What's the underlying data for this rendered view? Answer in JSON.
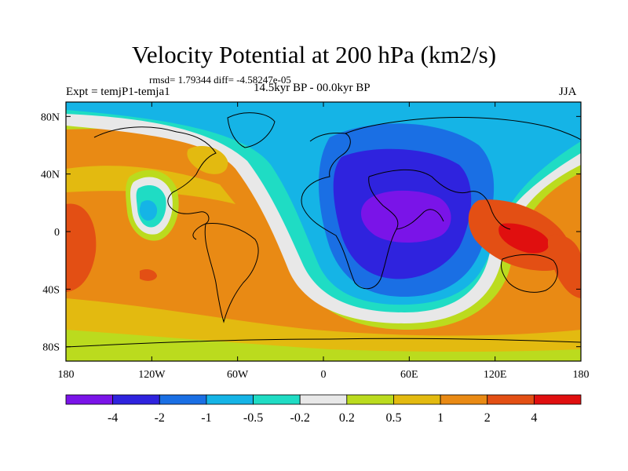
{
  "title": "Velocity Potential at 200 hPa (km2/s)",
  "stats": "rmsd= 1.79344 diff= -4.58247e-05",
  "experiment": "Expt = temjP1-temja1",
  "period": "14.5kyr BP - 00.0kyr BP",
  "season": "JJA",
  "map": {
    "lon_ticks": [
      "180",
      "120W",
      "60W",
      "0",
      "60E",
      "120E",
      "180"
    ],
    "lat_ticks": [
      "80N",
      "40N",
      "0",
      "40S",
      "80S"
    ]
  },
  "colorbar": {
    "labels": [
      "-4",
      "-2",
      "-1",
      "-0.5",
      "-0.2",
      "0.2",
      "0.5",
      "1",
      "2",
      "4"
    ],
    "colors": [
      "#7a14e8",
      "#2f23de",
      "#1a6fe4",
      "#15b4e6",
      "#1fdcc4",
      "#e8e8e8",
      "#bbdb1e",
      "#e3ba10",
      "#e98a14",
      "#e34f14",
      "#e00f0f"
    ]
  },
  "colors": {
    "ocean_warm": "#e98a14",
    "strong_positive": "#e34f14",
    "strong_negative": "#7a14e8"
  }
}
